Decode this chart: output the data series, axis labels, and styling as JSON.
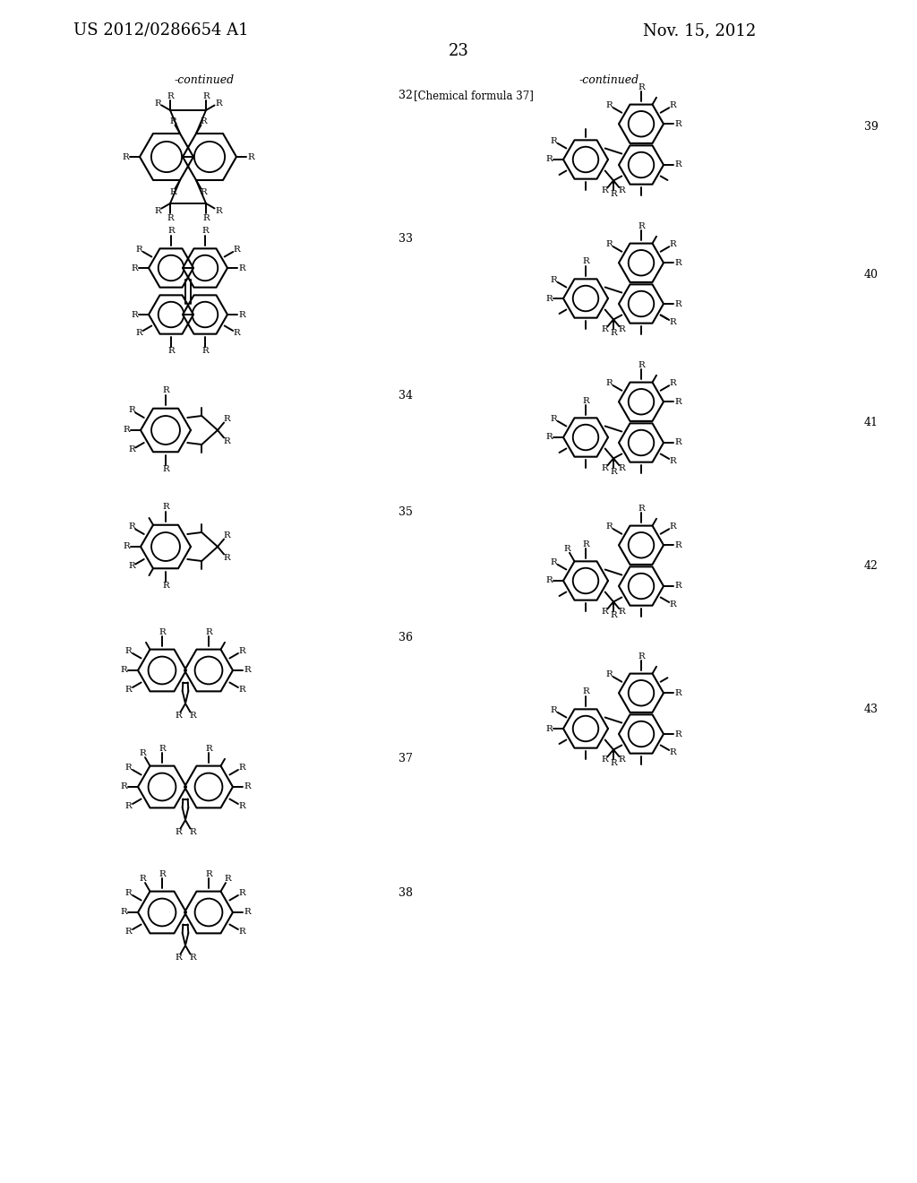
{
  "page_header_left": "US 2012/0286654 A1",
  "page_header_right": "Nov. 15, 2012",
  "page_number": "23",
  "left_continued": "-continued",
  "right_continued": "-continued",
  "right_formula_label": "[Chemical formula 37]",
  "bg": "#ffffff",
  "tc": "#000000"
}
